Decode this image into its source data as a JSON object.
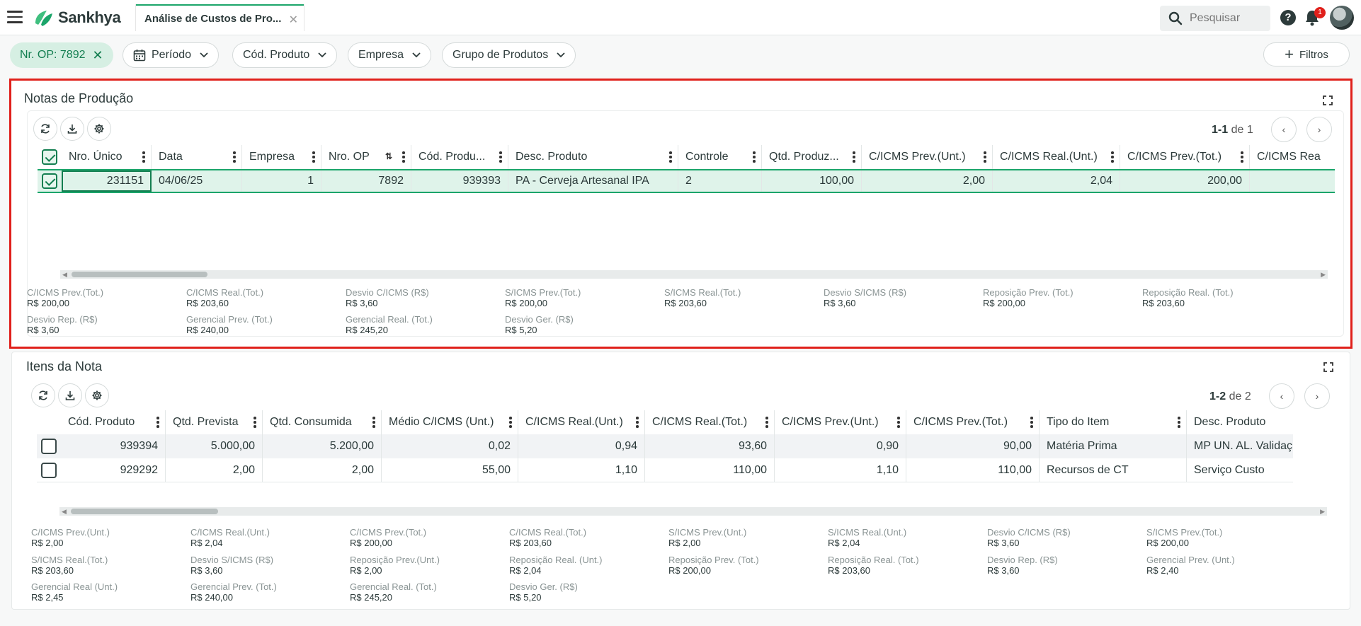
{
  "app": {
    "brand": "Sankhya",
    "tab_title": "Análise de Custos de Pro...",
    "search_placeholder": "Pesquisar",
    "notification_count": "1"
  },
  "filters": {
    "active": "Nr. OP: 7892",
    "items": [
      "Período",
      "Cód. Produto",
      "Empresa",
      "Grupo de Produtos"
    ],
    "more_label": "Filtros"
  },
  "notas": {
    "title": "Notas de Produção",
    "pager": {
      "range": "1-1",
      "of": "de 1"
    },
    "columns": [
      "Nro. Único",
      "Data",
      "Empresa",
      "Nro. OP",
      "Cód. Produ...",
      "Desc. Produto",
      "Controle",
      "Qtd. Produz...",
      "C/ICMS Prev.(Unt.)",
      "C/ICMS Real.(Unt.)",
      "C/ICMS Prev.(Tot.)",
      "C/ICMS Rea"
    ],
    "rows": [
      [
        "231151",
        "04/06/25",
        "1",
        "7892",
        "939393",
        "PA - Cerveja Artesanal IPA",
        "2",
        "100,00",
        "2,00",
        "2,04",
        "200,00",
        ""
      ]
    ],
    "totals": [
      {
        "label": "C/ICMS Prev.(Tot.)",
        "value": "R$ 200,00"
      },
      {
        "label": "C/ICMS Real.(Tot.)",
        "value": "R$ 203,60"
      },
      {
        "label": "Desvio C/ICMS (R$)",
        "value": "R$ 3,60"
      },
      {
        "label": "S/ICMS Prev.(Tot.)",
        "value": "R$ 200,00"
      },
      {
        "label": "S/ICMS Real.(Tot.)",
        "value": "R$ 203,60"
      },
      {
        "label": "Desvio S/ICMS (R$)",
        "value": "R$ 3,60"
      },
      {
        "label": "Reposição Prev. (Tot.)",
        "value": "R$ 200,00"
      },
      {
        "label": "Reposição Real. (Tot.)",
        "value": "R$ 203,60"
      },
      {
        "label": "Desvio Rep. (R$)",
        "value": "R$ 3,60"
      },
      {
        "label": "Gerencial Prev. (Tot.)",
        "value": "R$ 240,00"
      },
      {
        "label": "Gerencial Real. (Tot.)",
        "value": "R$ 245,20"
      },
      {
        "label": "Desvio Ger. (R$)",
        "value": "R$ 5,20"
      }
    ]
  },
  "itens": {
    "title": "Itens da Nota",
    "pager": {
      "range": "1-2",
      "of": "de 2"
    },
    "columns": [
      "Cód. Produto",
      "Qtd. Prevista",
      "Qtd. Consumida",
      "Médio C/ICMS (Unt.)",
      "C/ICMS Real.(Unt.)",
      "C/ICMS Real.(Tot.)",
      "C/ICMS Prev.(Unt.)",
      "C/ICMS Prev.(Tot.)",
      "Tipo do Item",
      "Desc. Produto"
    ],
    "rows": [
      [
        "939394",
        "5.000,00",
        "5.200,00",
        "0,02",
        "0,94",
        "93,60",
        "0,90",
        "90,00",
        "Matéria Prima",
        "MP UN. AL. Validaç"
      ],
      [
        "929292",
        "2,00",
        "2,00",
        "55,00",
        "1,10",
        "110,00",
        "1,10",
        "110,00",
        "Recursos de CT",
        "Serviço Custo"
      ]
    ],
    "totals": [
      {
        "label": "C/ICMS Prev.(Unt.)",
        "value": "R$ 2,00"
      },
      {
        "label": "C/ICMS Real.(Unt.)",
        "value": "R$ 2,04"
      },
      {
        "label": "C/ICMS Prev.(Tot.)",
        "value": "R$ 200,00"
      },
      {
        "label": "C/ICMS Real.(Tot.)",
        "value": "R$ 203,60"
      },
      {
        "label": "S/ICMS Prev.(Unt.)",
        "value": "R$ 2,00"
      },
      {
        "label": "S/ICMS Real.(Unt.)",
        "value": "R$ 2,04"
      },
      {
        "label": "Desvio C/ICMS (R$)",
        "value": "R$ 3,60"
      },
      {
        "label": "S/ICMS Prev.(Tot.)",
        "value": "R$ 200,00"
      },
      {
        "label": "S/ICMS Real.(Tot.)",
        "value": "R$ 203,60"
      },
      {
        "label": "Desvio S/ICMS (R$)",
        "value": "R$ 3,60"
      },
      {
        "label": "Reposição Prev.(Unt.)",
        "value": "R$ 2,00"
      },
      {
        "label": "Reposição Real. (Unt.)",
        "value": "R$ 2,04"
      },
      {
        "label": "Reposição Prev. (Tot.)",
        "value": "R$ 200,00"
      },
      {
        "label": "Reposição Real. (Tot.)",
        "value": "R$ 203,60"
      },
      {
        "label": "Desvio Rep. (R$)",
        "value": "R$ 3,60"
      },
      {
        "label": "Gerencial Prev. (Unt.)",
        "value": "R$ 2,40"
      },
      {
        "label": "Gerencial Real (Unt.)",
        "value": "R$ 2,45"
      },
      {
        "label": "Gerencial Prev. (Tot.)",
        "value": "R$ 240,00"
      },
      {
        "label": "Gerencial Real. (Tot.)",
        "value": "R$ 245,20"
      },
      {
        "label": "Desvio Ger. (R$)",
        "value": "R$ 5,20"
      }
    ]
  },
  "icons": {
    "menu": "hamburger-icon",
    "search": "search-icon",
    "help": "help-icon",
    "notifications": "bell-icon",
    "refresh": "refresh-icon",
    "download": "download-icon",
    "settings": "gear-icon",
    "expand": "expand-icon"
  },
  "colors": {
    "brand_green": "#1ba56a",
    "selection_red_outline": "#e0201b",
    "selected_row": "#dff3ea"
  }
}
